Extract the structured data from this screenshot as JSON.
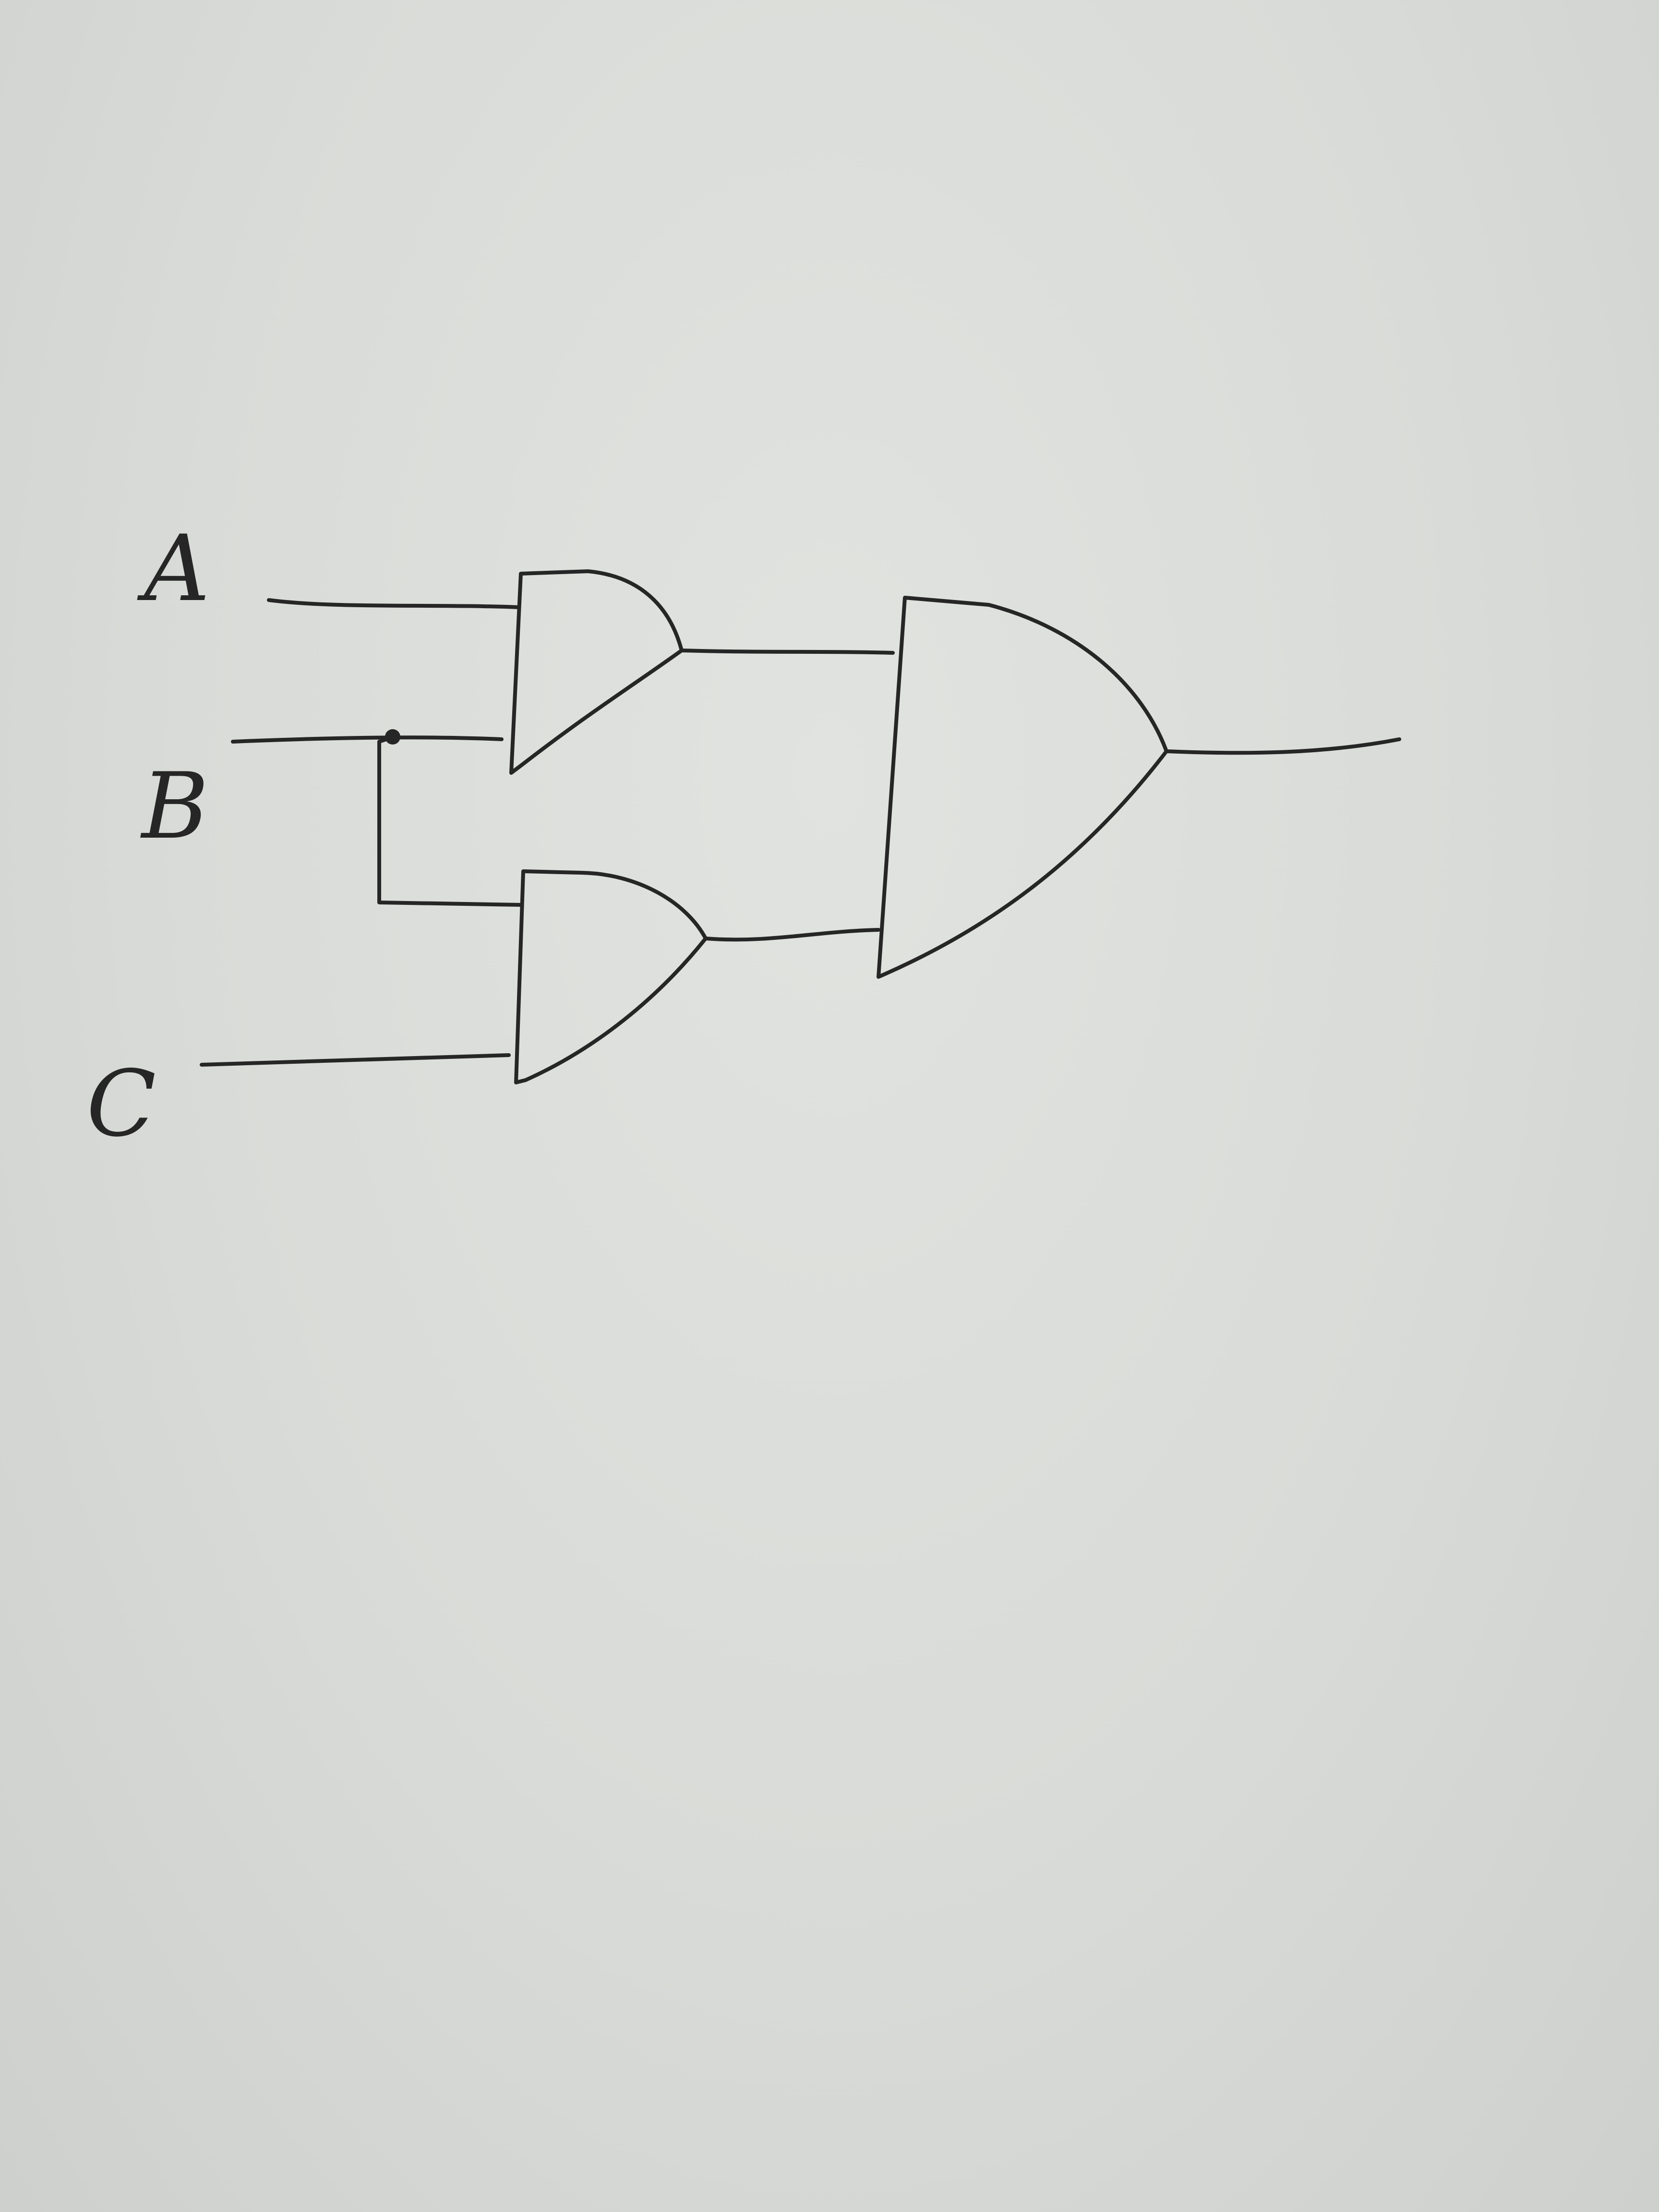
{
  "inputs": [
    {
      "label": "A"
    },
    {
      "label": "B"
    },
    {
      "label": "C"
    }
  ],
  "gates": [
    {
      "type": "AND",
      "inputs": [
        "A",
        "B"
      ]
    },
    {
      "type": "AND",
      "inputs": [
        "B",
        "C"
      ]
    },
    {
      "type": "AND",
      "inputs": [
        "gate-1",
        "gate-2"
      ]
    }
  ],
  "colors": {
    "ink": "#262626",
    "paper": "#d9dbd8"
  }
}
